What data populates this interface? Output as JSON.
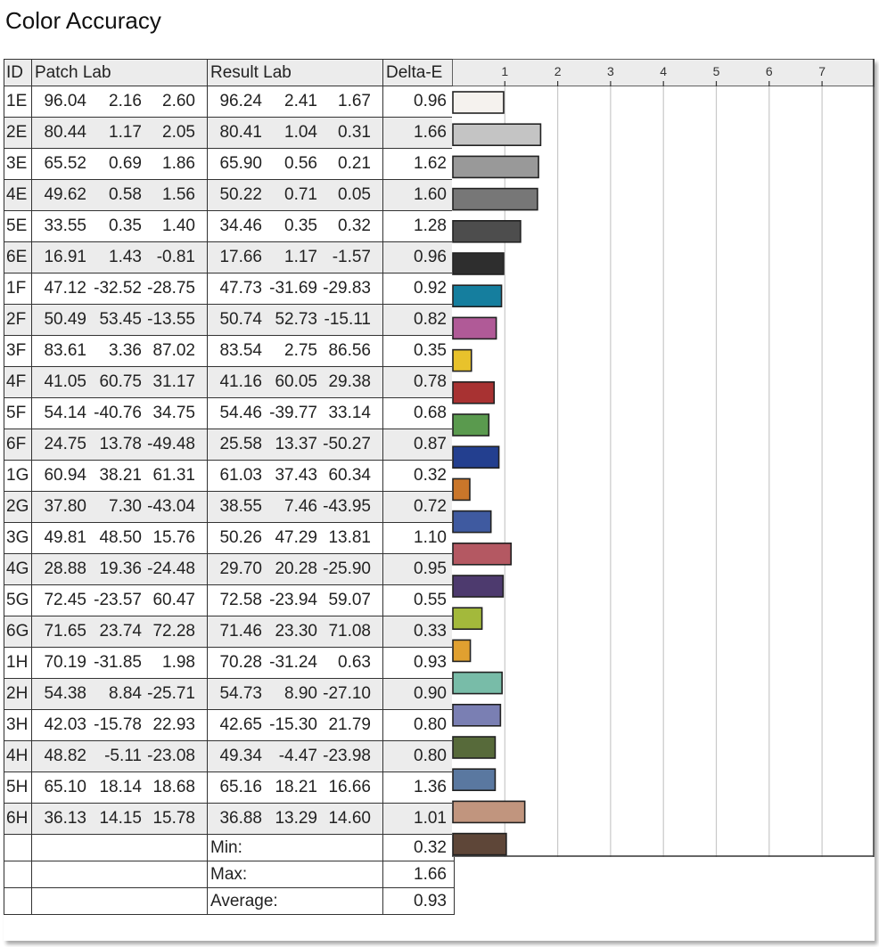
{
  "title": "Color Accuracy",
  "headers": {
    "id": "ID",
    "patch": "Patch Lab",
    "result": "Result Lab",
    "delta": "Delta-E"
  },
  "rows": [
    {
      "id": "1E",
      "patch": [
        "96.04",
        "2.16",
        "2.60"
      ],
      "result": [
        "96.24",
        "2.41",
        "1.67"
      ],
      "delta": "0.96"
    },
    {
      "id": "2E",
      "patch": [
        "80.44",
        "1.17",
        "2.05"
      ],
      "result": [
        "80.41",
        "1.04",
        "0.31"
      ],
      "delta": "1.66"
    },
    {
      "id": "3E",
      "patch": [
        "65.52",
        "0.69",
        "1.86"
      ],
      "result": [
        "65.90",
        "0.56",
        "0.21"
      ],
      "delta": "1.62"
    },
    {
      "id": "4E",
      "patch": [
        "49.62",
        "0.58",
        "1.56"
      ],
      "result": [
        "50.22",
        "0.71",
        "0.05"
      ],
      "delta": "1.60"
    },
    {
      "id": "5E",
      "patch": [
        "33.55",
        "0.35",
        "1.40"
      ],
      "result": [
        "34.46",
        "0.35",
        "0.32"
      ],
      "delta": "1.28"
    },
    {
      "id": "6E",
      "patch": [
        "16.91",
        "1.43",
        "-0.81"
      ],
      "result": [
        "17.66",
        "1.17",
        "-1.57"
      ],
      "delta": "0.96"
    },
    {
      "id": "1F",
      "patch": [
        "47.12",
        "-32.52",
        "-28.75"
      ],
      "result": [
        "47.73",
        "-31.69",
        "-29.83"
      ],
      "delta": "0.92"
    },
    {
      "id": "2F",
      "patch": [
        "50.49",
        "53.45",
        "-13.55"
      ],
      "result": [
        "50.74",
        "52.73",
        "-15.11"
      ],
      "delta": "0.82"
    },
    {
      "id": "3F",
      "patch": [
        "83.61",
        "3.36",
        "87.02"
      ],
      "result": [
        "83.54",
        "2.75",
        "86.56"
      ],
      "delta": "0.35"
    },
    {
      "id": "4F",
      "patch": [
        "41.05",
        "60.75",
        "31.17"
      ],
      "result": [
        "41.16",
        "60.05",
        "29.38"
      ],
      "delta": "0.78"
    },
    {
      "id": "5F",
      "patch": [
        "54.14",
        "-40.76",
        "34.75"
      ],
      "result": [
        "54.46",
        "-39.77",
        "33.14"
      ],
      "delta": "0.68"
    },
    {
      "id": "6F",
      "patch": [
        "24.75",
        "13.78",
        "-49.48"
      ],
      "result": [
        "25.58",
        "13.37",
        "-50.27"
      ],
      "delta": "0.87"
    },
    {
      "id": "1G",
      "patch": [
        "60.94",
        "38.21",
        "61.31"
      ],
      "result": [
        "61.03",
        "37.43",
        "60.34"
      ],
      "delta": "0.32"
    },
    {
      "id": "2G",
      "patch": [
        "37.80",
        "7.30",
        "-43.04"
      ],
      "result": [
        "38.55",
        "7.46",
        "-43.95"
      ],
      "delta": "0.72"
    },
    {
      "id": "3G",
      "patch": [
        "49.81",
        "48.50",
        "15.76"
      ],
      "result": [
        "50.26",
        "47.29",
        "13.81"
      ],
      "delta": "1.10"
    },
    {
      "id": "4G",
      "patch": [
        "28.88",
        "19.36",
        "-24.48"
      ],
      "result": [
        "29.70",
        "20.28",
        "-25.90"
      ],
      "delta": "0.95"
    },
    {
      "id": "5G",
      "patch": [
        "72.45",
        "-23.57",
        "60.47"
      ],
      "result": [
        "72.58",
        "-23.94",
        "59.07"
      ],
      "delta": "0.55"
    },
    {
      "id": "6G",
      "patch": [
        "71.65",
        "23.74",
        "72.28"
      ],
      "result": [
        "71.46",
        "23.30",
        "71.08"
      ],
      "delta": "0.33"
    },
    {
      "id": "1H",
      "patch": [
        "70.19",
        "-31.85",
        "1.98"
      ],
      "result": [
        "70.28",
        "-31.24",
        "0.63"
      ],
      "delta": "0.93"
    },
    {
      "id": "2H",
      "patch": [
        "54.38",
        "8.84",
        "-25.71"
      ],
      "result": [
        "54.73",
        "8.90",
        "-27.10"
      ],
      "delta": "0.90"
    },
    {
      "id": "3H",
      "patch": [
        "42.03",
        "-15.78",
        "22.93"
      ],
      "result": [
        "42.65",
        "-15.30",
        "21.79"
      ],
      "delta": "0.80"
    },
    {
      "id": "4H",
      "patch": [
        "48.82",
        "-5.11",
        "-23.08"
      ],
      "result": [
        "49.34",
        "-4.47",
        "-23.98"
      ],
      "delta": "0.80"
    },
    {
      "id": "5H",
      "patch": [
        "65.10",
        "18.14",
        "18.68"
      ],
      "result": [
        "65.16",
        "18.21",
        "16.66"
      ],
      "delta": "1.36"
    },
    {
      "id": "6H",
      "patch": [
        "36.13",
        "14.15",
        "15.78"
      ],
      "result": [
        "36.88",
        "13.29",
        "14.60"
      ],
      "delta": "1.01"
    }
  ],
  "summary": [
    {
      "label": "Min:",
      "value": "0.32"
    },
    {
      "label": "Max:",
      "value": "1.66"
    },
    {
      "label": "Average:",
      "value": "0.93"
    }
  ],
  "chart_data": {
    "type": "bar",
    "orientation": "horizontal",
    "categories": [
      "1E",
      "2E",
      "3E",
      "4E",
      "5E",
      "6E",
      "1F",
      "2F",
      "3F",
      "4F",
      "5F",
      "6F",
      "1G",
      "2G",
      "3G",
      "4G",
      "5G",
      "6G",
      "1H",
      "2H",
      "3H",
      "4H",
      "5H",
      "6H"
    ],
    "values": [
      0.96,
      1.66,
      1.62,
      1.6,
      1.28,
      0.96,
      0.92,
      0.82,
      0.35,
      0.78,
      0.68,
      0.87,
      0.32,
      0.72,
      1.1,
      0.95,
      0.55,
      0.33,
      0.93,
      0.9,
      0.8,
      0.8,
      1.36,
      1.01
    ],
    "colors": [
      "#f5f2ee",
      "#c4c4c4",
      "#999999",
      "#777777",
      "#4d4d4d",
      "#2e2e2e",
      "#157e9e",
      "#b05a97",
      "#e8c22c",
      "#a83232",
      "#5a9a4e",
      "#233f8f",
      "#c9762a",
      "#3f5aa0",
      "#b45862",
      "#4d3a6e",
      "#a3b93b",
      "#e0a030",
      "#78bca8",
      "#7a7fb3",
      "#576a3a",
      "#5a78a0",
      "#c1957e",
      "#5e4638"
    ],
    "xticks": [
      "1",
      "2",
      "3",
      "4",
      "5",
      "6",
      "7"
    ],
    "xlim": [
      0,
      7.9
    ],
    "grid": true
  }
}
